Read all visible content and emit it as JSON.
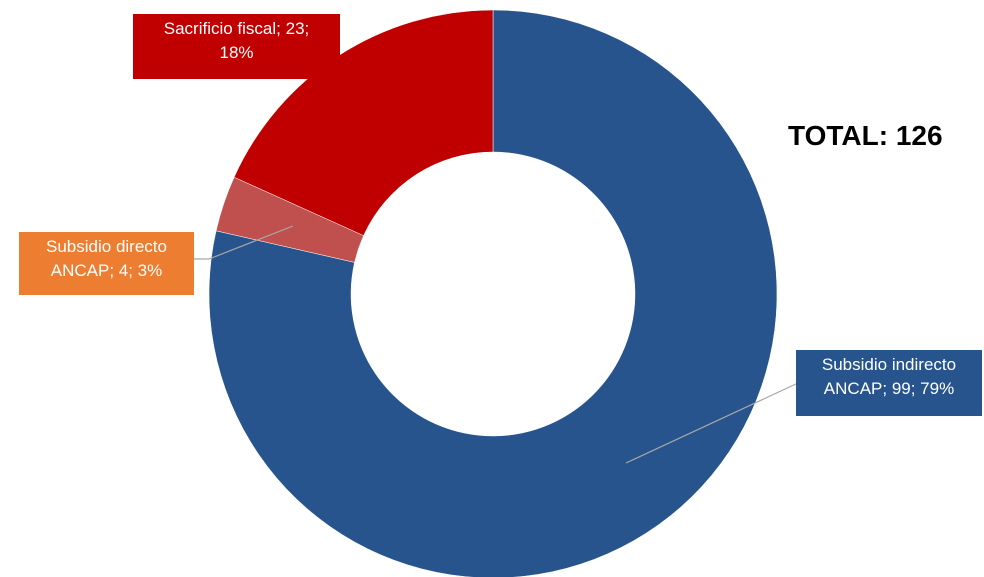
{
  "total_label": "TOTAL: 126",
  "chart_data": {
    "type": "pie",
    "variant": "donut",
    "title": "",
    "total_text": "TOTAL: 126",
    "start_angle_deg": 0,
    "direction": "clockwise",
    "slices": [
      {
        "name": "Subsidio indirecto ANCAP",
        "value": 99,
        "percent": 79,
        "color": "#27548C",
        "label_lines": [
          "Subsidio indirecto",
          "ANCAP; 99; 79%"
        ],
        "label_bg": "#27548C"
      },
      {
        "name": "Subsidio directo ANCAP",
        "value": 4,
        "percent": 3,
        "color": "#C0504D",
        "label_lines": [
          "Subsidio directo",
          "ANCAP; 4; 3%"
        ],
        "label_bg": "#ED7D31"
      },
      {
        "name": "Sacrificio fiscal",
        "value": 23,
        "percent": 18,
        "color": "#C00000",
        "label_lines": [
          "Sacrificio fiscal; 23;",
          "18%"
        ],
        "label_bg": "#C00000"
      }
    ],
    "legend": "none"
  }
}
